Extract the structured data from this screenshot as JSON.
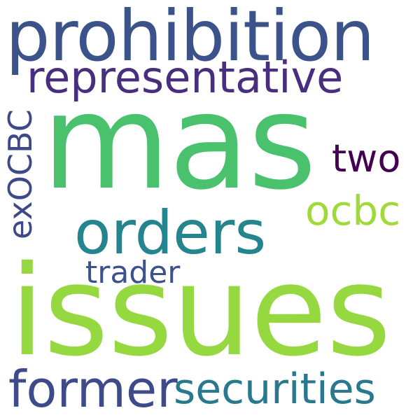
{
  "word_cloud": {
    "words": [
      {
        "key": "issues",
        "text": "issues",
        "color": "#95d840"
      },
      {
        "key": "mas",
        "text": "mas",
        "color": "#4ac16d"
      },
      {
        "key": "prohibition",
        "text": "prohibition",
        "color": "#3b528b"
      },
      {
        "key": "orders",
        "text": "orders",
        "color": "#25858e"
      },
      {
        "key": "representative",
        "text": "representative",
        "color": "#472f7d"
      },
      {
        "key": "former",
        "text": "former",
        "color": "#3e4a89"
      },
      {
        "key": "securities",
        "text": "securities",
        "color": "#2a788e"
      },
      {
        "key": "ocbc",
        "text": "ocbc",
        "color": "#a0da39"
      },
      {
        "key": "two",
        "text": "two",
        "color": "#440154"
      },
      {
        "key": "trader",
        "text": "trader",
        "color": "#3b528b"
      },
      {
        "key": "exocbc",
        "text": "exOCBC",
        "color": "#3e4989"
      }
    ]
  }
}
